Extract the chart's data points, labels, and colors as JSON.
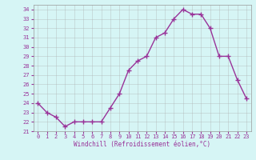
{
  "hours": [
    0,
    1,
    2,
    3,
    4,
    5,
    6,
    7,
    8,
    9,
    10,
    11,
    12,
    13,
    14,
    15,
    16,
    17,
    18,
    19,
    20,
    21,
    22,
    23
  ],
  "temps": [
    24.0,
    23.0,
    22.5,
    21.5,
    22.0,
    22.0,
    22.0,
    22.0,
    23.5,
    25.0,
    27.5,
    28.5,
    29.0,
    31.0,
    31.5,
    33.0,
    34.0,
    33.5,
    33.5,
    32.0,
    29.0,
    29.0,
    26.5,
    24.5
  ],
  "line_color": "#993399",
  "bg_color": "#d6f5f5",
  "grid_color": "#aaaaaa",
  "xlabel": "Windchill (Refroidissement éolien,°C)",
  "ylim": [
    21,
    34.5
  ],
  "xlim": [
    -0.5,
    23.5
  ],
  "yticks": [
    21,
    22,
    23,
    24,
    25,
    26,
    27,
    28,
    29,
    30,
    31,
    32,
    33,
    34
  ],
  "xticks": [
    0,
    1,
    2,
    3,
    4,
    5,
    6,
    7,
    8,
    9,
    10,
    11,
    12,
    13,
    14,
    15,
    16,
    17,
    18,
    19,
    20,
    21,
    22,
    23
  ]
}
